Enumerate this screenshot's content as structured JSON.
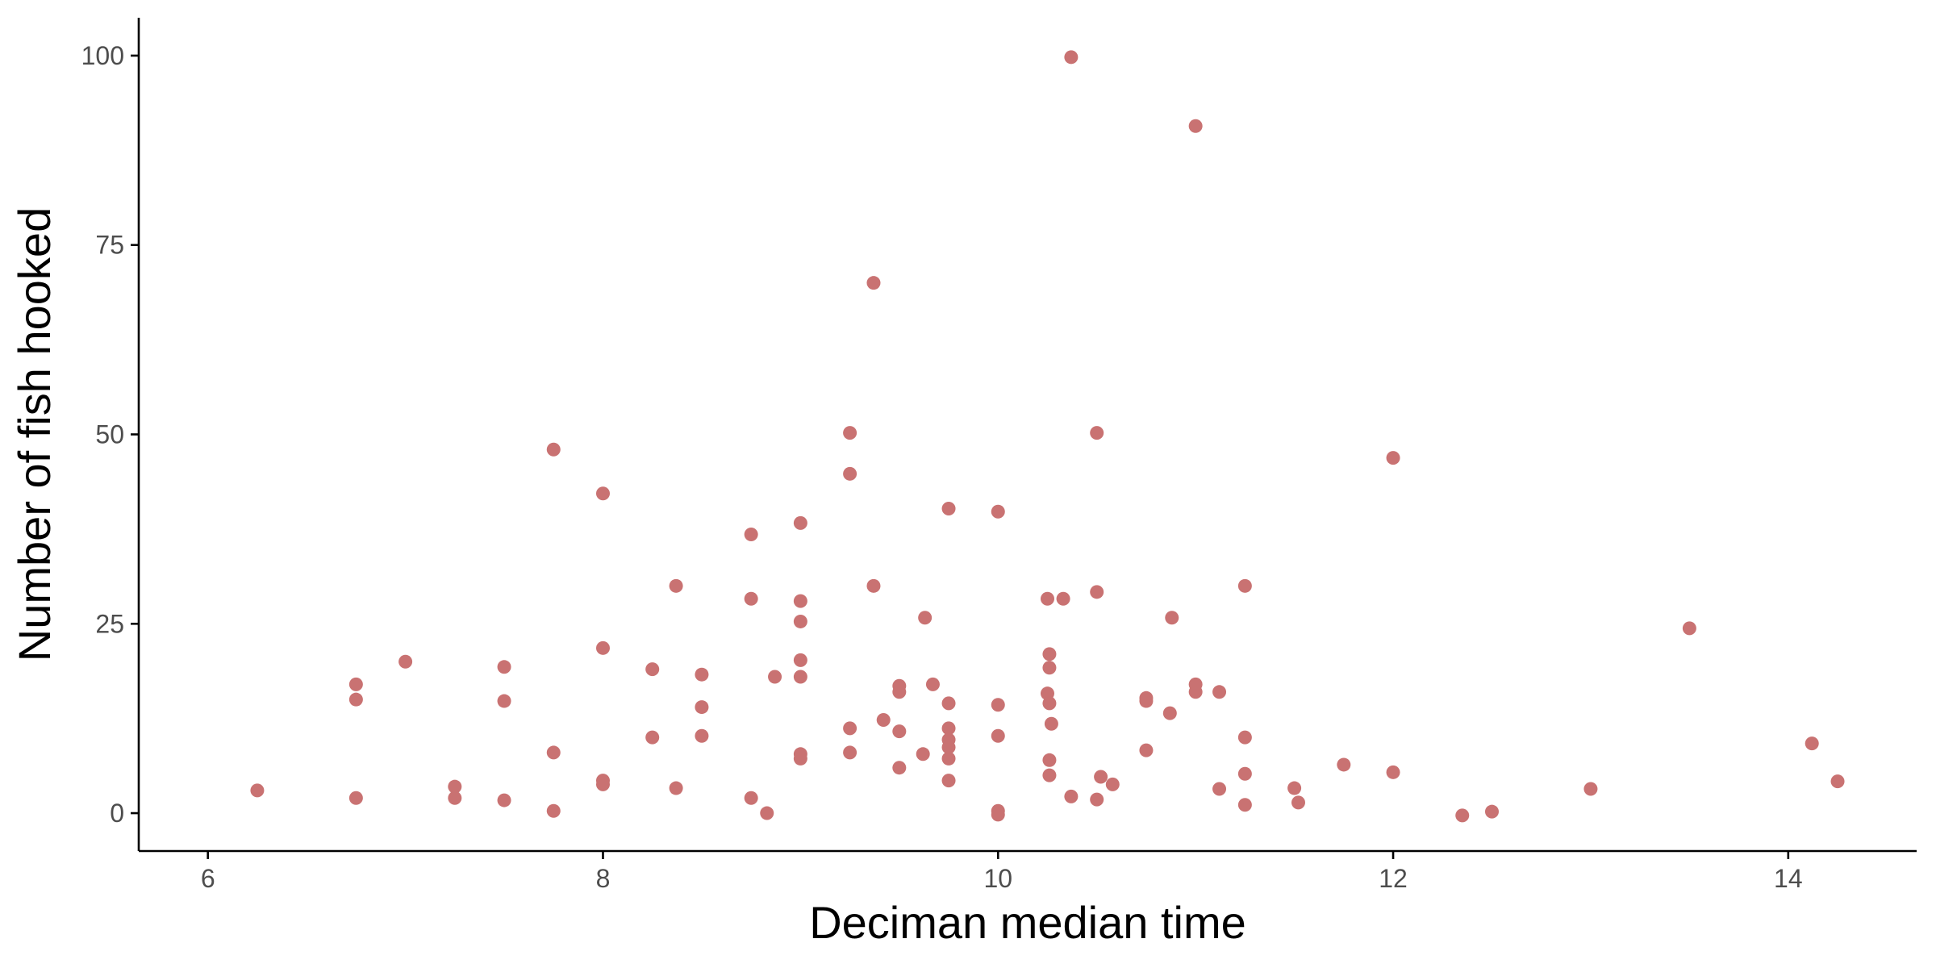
{
  "chart_data": {
    "type": "scatter",
    "title": "",
    "xlabel": "Deciman median time",
    "ylabel": "Number of fish hooked",
    "xlim": [
      5.65,
      14.65
    ],
    "ylim": [
      -5,
      105
    ],
    "x_ticks": [
      6,
      8,
      10,
      12,
      14
    ],
    "y_ticks": [
      0,
      25,
      50,
      75,
      100
    ],
    "x_tick_labels": [
      "6",
      "8",
      "10",
      "12",
      "14"
    ],
    "y_tick_labels": [
      "0",
      "25",
      "50",
      "75",
      "100"
    ],
    "grid": false,
    "legend": "none",
    "point_color": "#c97272",
    "points": [
      {
        "x": 6.25,
        "y": 3
      },
      {
        "x": 6.75,
        "y": 17
      },
      {
        "x": 6.75,
        "y": 15
      },
      {
        "x": 6.75,
        "y": 2
      },
      {
        "x": 7.0,
        "y": 20
      },
      {
        "x": 7.25,
        "y": 3.5
      },
      {
        "x": 7.25,
        "y": 2
      },
      {
        "x": 7.5,
        "y": 19.3
      },
      {
        "x": 7.5,
        "y": 14.8
      },
      {
        "x": 7.5,
        "y": 1.7
      },
      {
        "x": 7.75,
        "y": 48
      },
      {
        "x": 7.75,
        "y": 8
      },
      {
        "x": 7.75,
        "y": 0.3
      },
      {
        "x": 8.0,
        "y": 42.2
      },
      {
        "x": 8.0,
        "y": 21.8
      },
      {
        "x": 8.0,
        "y": 4.3
      },
      {
        "x": 8.0,
        "y": 3.8
      },
      {
        "x": 8.25,
        "y": 19
      },
      {
        "x": 8.25,
        "y": 10
      },
      {
        "x": 8.37,
        "y": 30
      },
      {
        "x": 8.37,
        "y": 3.3
      },
      {
        "x": 8.5,
        "y": 18.3
      },
      {
        "x": 8.5,
        "y": 14
      },
      {
        "x": 8.5,
        "y": 10.2
      },
      {
        "x": 8.75,
        "y": 36.8
      },
      {
        "x": 8.75,
        "y": 28.3
      },
      {
        "x": 8.75,
        "y": 2
      },
      {
        "x": 8.83,
        "y": 0
      },
      {
        "x": 8.87,
        "y": 18
      },
      {
        "x": 9.0,
        "y": 38.3
      },
      {
        "x": 9.0,
        "y": 28
      },
      {
        "x": 9.0,
        "y": 25.3
      },
      {
        "x": 9.0,
        "y": 20.2
      },
      {
        "x": 9.0,
        "y": 18
      },
      {
        "x": 9.0,
        "y": 7.8
      },
      {
        "x": 9.0,
        "y": 7.2
      },
      {
        "x": 9.25,
        "y": 50.2
      },
      {
        "x": 9.25,
        "y": 44.8
      },
      {
        "x": 9.25,
        "y": 11.2
      },
      {
        "x": 9.25,
        "y": 8
      },
      {
        "x": 9.37,
        "y": 70
      },
      {
        "x": 9.37,
        "y": 30
      },
      {
        "x": 9.42,
        "y": 12.3
      },
      {
        "x": 9.5,
        "y": 16.8
      },
      {
        "x": 9.5,
        "y": 16
      },
      {
        "x": 9.5,
        "y": 10.8
      },
      {
        "x": 9.5,
        "y": 6
      },
      {
        "x": 9.62,
        "y": 7.8
      },
      {
        "x": 9.63,
        "y": 25.8
      },
      {
        "x": 9.67,
        "y": 17
      },
      {
        "x": 9.75,
        "y": 40.2
      },
      {
        "x": 9.75,
        "y": 14.5
      },
      {
        "x": 9.75,
        "y": 11.2
      },
      {
        "x": 9.75,
        "y": 9.7
      },
      {
        "x": 9.75,
        "y": 8.7
      },
      {
        "x": 9.75,
        "y": 7.2
      },
      {
        "x": 9.75,
        "y": 4.3
      },
      {
        "x": 10.0,
        "y": 39.8
      },
      {
        "x": 10.0,
        "y": 14.3
      },
      {
        "x": 10.0,
        "y": 10.2
      },
      {
        "x": 10.0,
        "y": 0.3
      },
      {
        "x": 10.0,
        "y": -0.2
      },
      {
        "x": 10.25,
        "y": 28.3
      },
      {
        "x": 10.25,
        "y": 15.8
      },
      {
        "x": 10.26,
        "y": 21
      },
      {
        "x": 10.26,
        "y": 19.2
      },
      {
        "x": 10.26,
        "y": 14.5
      },
      {
        "x": 10.26,
        "y": 7
      },
      {
        "x": 10.26,
        "y": 5
      },
      {
        "x": 10.27,
        "y": 11.8
      },
      {
        "x": 10.33,
        "y": 28.3
      },
      {
        "x": 10.37,
        "y": 99.8
      },
      {
        "x": 10.37,
        "y": 2.2
      },
      {
        "x": 10.5,
        "y": 50.2
      },
      {
        "x": 10.5,
        "y": 29.2
      },
      {
        "x": 10.5,
        "y": 1.8
      },
      {
        "x": 10.52,
        "y": 4.8
      },
      {
        "x": 10.58,
        "y": 3.8
      },
      {
        "x": 10.75,
        "y": 15.2
      },
      {
        "x": 10.75,
        "y": 14.8
      },
      {
        "x": 10.75,
        "y": 8.3
      },
      {
        "x": 10.87,
        "y": 13.2
      },
      {
        "x": 10.88,
        "y": 25.8
      },
      {
        "x": 11.0,
        "y": 90.7
      },
      {
        "x": 11.0,
        "y": 17
      },
      {
        "x": 11.0,
        "y": 16
      },
      {
        "x": 11.12,
        "y": 16
      },
      {
        "x": 11.12,
        "y": 3.2
      },
      {
        "x": 11.25,
        "y": 30
      },
      {
        "x": 11.25,
        "y": 10
      },
      {
        "x": 11.25,
        "y": 5.2
      },
      {
        "x": 11.25,
        "y": 1.1
      },
      {
        "x": 11.5,
        "y": 3.3
      },
      {
        "x": 11.52,
        "y": 1.4
      },
      {
        "x": 11.75,
        "y": 6.4
      },
      {
        "x": 12.0,
        "y": 46.9
      },
      {
        "x": 12.0,
        "y": 5.4
      },
      {
        "x": 12.35,
        "y": -0.3
      },
      {
        "x": 12.5,
        "y": 0.2
      },
      {
        "x": 13.0,
        "y": 3.2
      },
      {
        "x": 13.5,
        "y": 24.4
      },
      {
        "x": 14.12,
        "y": 9.2
      },
      {
        "x": 14.25,
        "y": 4.2
      }
    ]
  }
}
